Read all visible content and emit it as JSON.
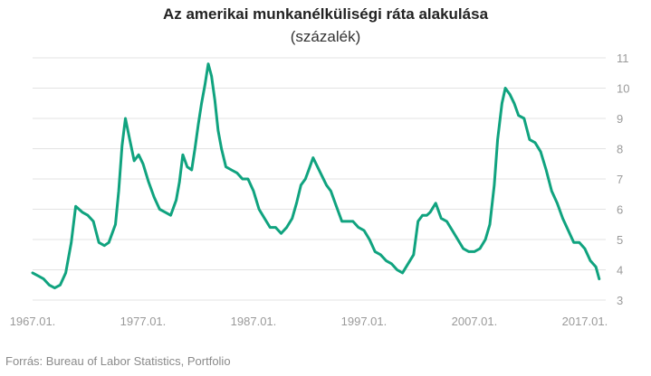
{
  "chart_data": {
    "type": "line",
    "title": "Az amerikai munkanélküliségi ráta alakulása",
    "subtitle": "(százalék)",
    "source": "Forrás: Bureau of Labor Statistics, Portfolio",
    "x_tick_labels": [
      "1967.01.",
      "1977.01.",
      "1987.01.",
      "1997.01.",
      "2007.01.",
      "2017.01."
    ],
    "x_tick_years": [
      1967,
      1977,
      1987,
      1997,
      2007,
      2017
    ],
    "y_tick_labels": [
      "3",
      "4",
      "5",
      "6",
      "7",
      "8",
      "9",
      "10",
      "11"
    ],
    "ylim": [
      3,
      11
    ],
    "xlim": [
      1967.0,
      2018.4
    ],
    "grid": "horizontal",
    "y_axis_side": "right",
    "line_color": "#10a37f",
    "series": [
      {
        "x": [
          1967.0,
          1967.5,
          1968.0,
          1968.5,
          1969.0,
          1969.5,
          1970.0,
          1970.5,
          1970.9,
          1971.5,
          1972.0,
          1972.5,
          1973.0,
          1973.5,
          1973.9,
          1974.5,
          1974.8,
          1975.1,
          1975.4,
          1975.8,
          1976.2,
          1976.6,
          1977.0,
          1977.5,
          1978.0,
          1978.5,
          1979.0,
          1979.5,
          1980.0,
          1980.3,
          1980.6,
          1981.0,
          1981.4,
          1981.7,
          1982.0,
          1982.3,
          1982.6,
          1982.9,
          1983.2,
          1983.5,
          1983.8,
          1984.1,
          1984.5,
          1985.0,
          1985.5,
          1986.0,
          1986.5,
          1987.0,
          1987.5,
          1988.0,
          1988.5,
          1989.0,
          1989.5,
          1990.0,
          1990.5,
          1990.9,
          1991.3,
          1991.7,
          1992.0,
          1992.4,
          1992.8,
          1993.2,
          1993.6,
          1994.0,
          1994.5,
          1995.0,
          1995.5,
          1996.0,
          1996.5,
          1997.0,
          1997.5,
          1998.0,
          1998.5,
          1999.0,
          1999.5,
          2000.0,
          2000.5,
          2001.0,
          2001.5,
          2001.9,
          2002.3,
          2002.7,
          2003.0,
          2003.5,
          2004.0,
          2004.5,
          2005.0,
          2005.5,
          2006.0,
          2006.5,
          2007.0,
          2007.5,
          2008.0,
          2008.4,
          2008.8,
          2009.1,
          2009.5,
          2009.8,
          2010.2,
          2010.6,
          2011.0,
          2011.5,
          2012.0,
          2012.5,
          2013.0,
          2013.5,
          2014.0,
          2014.5,
          2015.0,
          2015.5,
          2016.0,
          2016.5,
          2017.0,
          2017.5,
          2018.0,
          2018.3
        ],
        "values": [
          3.9,
          3.8,
          3.7,
          3.5,
          3.4,
          3.5,
          3.9,
          4.9,
          6.1,
          5.9,
          5.8,
          5.6,
          4.9,
          4.8,
          4.9,
          5.5,
          6.6,
          8.1,
          9.0,
          8.3,
          7.6,
          7.8,
          7.5,
          6.9,
          6.4,
          6.0,
          5.9,
          5.8,
          6.3,
          6.9,
          7.8,
          7.4,
          7.3,
          8.0,
          8.8,
          9.5,
          10.1,
          10.8,
          10.4,
          9.6,
          8.6,
          8.0,
          7.4,
          7.3,
          7.2,
          7.0,
          7.0,
          6.6,
          6.0,
          5.7,
          5.4,
          5.4,
          5.2,
          5.4,
          5.7,
          6.2,
          6.8,
          7.0,
          7.3,
          7.7,
          7.4,
          7.1,
          6.8,
          6.6,
          6.1,
          5.6,
          5.6,
          5.6,
          5.4,
          5.3,
          5.0,
          4.6,
          4.5,
          4.3,
          4.2,
          4.0,
          3.9,
          4.2,
          4.5,
          5.6,
          5.8,
          5.8,
          5.9,
          6.2,
          5.7,
          5.6,
          5.3,
          5.0,
          4.7,
          4.6,
          4.6,
          4.7,
          5.0,
          5.5,
          6.8,
          8.3,
          9.5,
          10.0,
          9.8,
          9.5,
          9.1,
          9.0,
          8.3,
          8.2,
          7.9,
          7.3,
          6.6,
          6.2,
          5.7,
          5.3,
          4.9,
          4.9,
          4.7,
          4.3,
          4.1,
          3.7
        ]
      }
    ]
  }
}
